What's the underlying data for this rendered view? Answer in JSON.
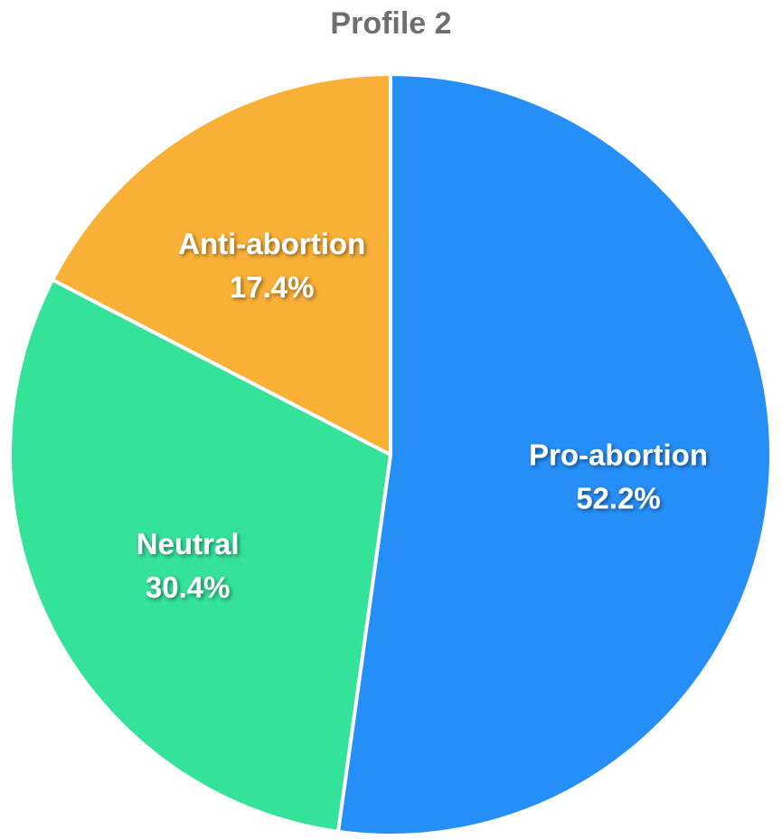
{
  "chart_data": {
    "type": "pie",
    "title": "Profile 2",
    "categories": [
      "Pro-abortion",
      "Neutral",
      "Anti-abortion"
    ],
    "values": [
      52.2,
      30.4,
      17.4
    ],
    "value_labels": [
      "52.2%",
      "30.4%",
      "17.4%"
    ],
    "colors": [
      "#268ef7",
      "#34e29a",
      "#f9b036"
    ],
    "legend": "none",
    "label_color": "#ffffff",
    "border_color": "#ffffff",
    "start": "top",
    "direction": "clockwise"
  }
}
